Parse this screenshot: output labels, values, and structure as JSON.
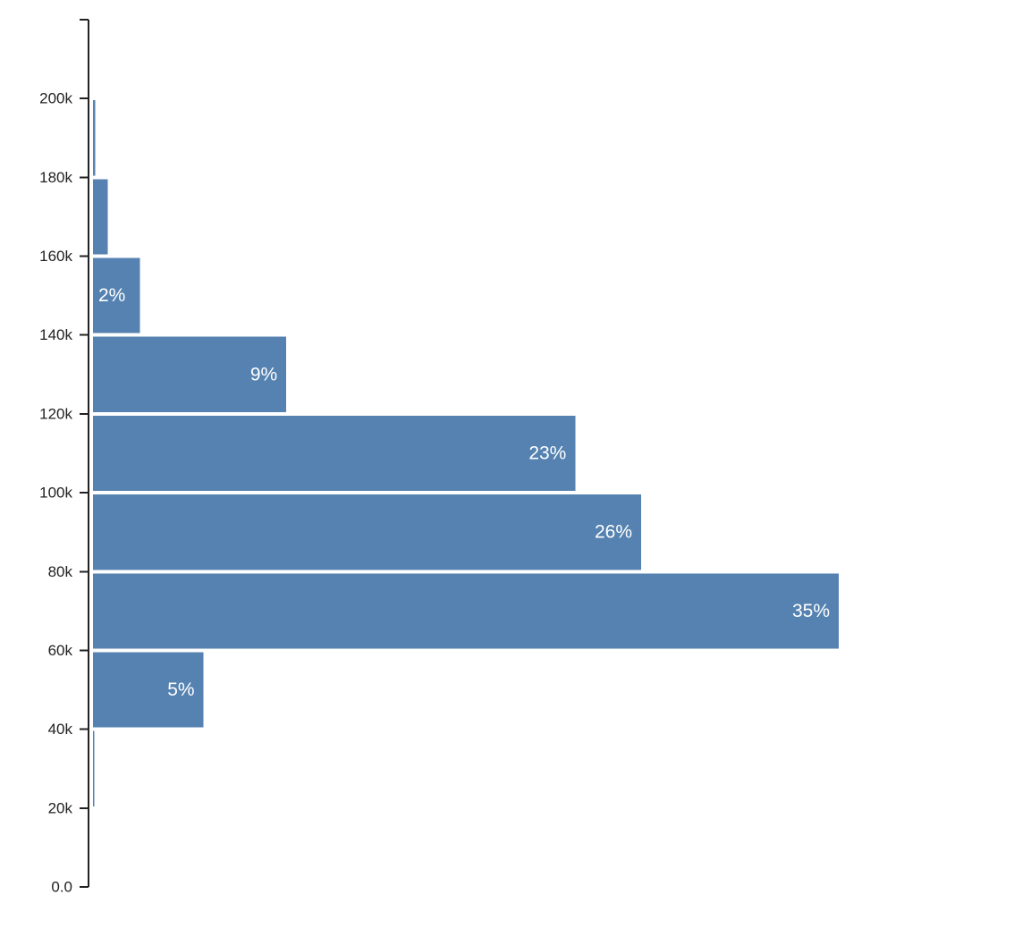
{
  "chart_data": {
    "type": "bar",
    "orientation": "horizontal",
    "y_ticks": [
      "0.0",
      "20k",
      "40k",
      "60k",
      "80k",
      "100k",
      "120k",
      "140k",
      "160k",
      "180k",
      "200k"
    ],
    "ylim": [
      0,
      220000
    ],
    "bins": [
      {
        "from": 20000,
        "to": 40000,
        "share": 0.001,
        "label": ""
      },
      {
        "from": 40000,
        "to": 60000,
        "share": 5.2,
        "label": "5%"
      },
      {
        "from": 60000,
        "to": 80000,
        "share": 35.1,
        "label": "35%"
      },
      {
        "from": 80000,
        "to": 100000,
        "share": 25.8,
        "label": "26%"
      },
      {
        "from": 100000,
        "to": 120000,
        "share": 22.7,
        "label": "23%"
      },
      {
        "from": 120000,
        "to": 140000,
        "share": 9.1,
        "label": "9%"
      },
      {
        "from": 140000,
        "to": 160000,
        "share": 2.2,
        "label": "2%"
      },
      {
        "from": 160000,
        "to": 180000,
        "share": 0.7,
        "label": ""
      },
      {
        "from": 180000,
        "to": 200000,
        "share": 0.1,
        "label": ""
      }
    ],
    "color": "#5582b1",
    "legend": "none",
    "grid": false
  }
}
